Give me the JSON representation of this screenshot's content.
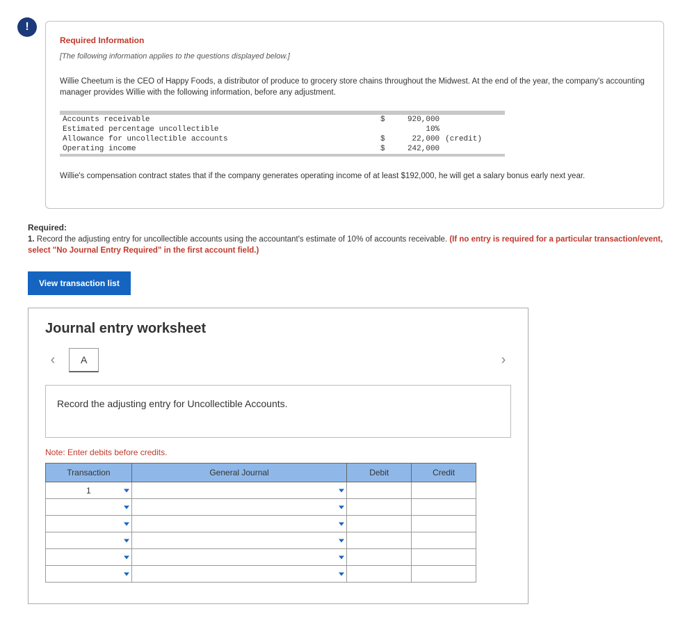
{
  "badge_char": "!",
  "required_info": {
    "title": "Required Information",
    "subtitle": "[The following information applies to the questions displayed below.]",
    "para1": "Willie Cheetum is the CEO of Happy Foods, a distributor of produce to grocery store chains throughout the Midwest. At the end of the year, the company's accounting manager provides Willie with the following information, before any adjustment.",
    "accounts": [
      {
        "label": "Accounts receivable",
        "currency": "$",
        "value": "920,000",
        "note": ""
      },
      {
        "label": "Estimated percentage uncollectible",
        "currency": "",
        "value": "10%",
        "note": ""
      },
      {
        "label": "Allowance for uncollectible accounts",
        "currency": "$",
        "value": "22,000",
        "note": "(credit)"
      },
      {
        "label": "Operating income",
        "currency": "$",
        "value": "242,000",
        "note": ""
      }
    ],
    "para2": "Willie's compensation contract states that if the company generates operating income of at least $192,000, he will get a salary bonus early next year."
  },
  "required": {
    "label": "Required:",
    "item1_prefix": "1. ",
    "item1_text": "Record the adjusting entry for uncollectible accounts using the accountant's estimate of 10% of accounts receivable. ",
    "item1_red": "(If no entry is required for a particular transaction/event, select \"No Journal Entry Required\" in the first account field.)"
  },
  "view_button": "View transaction list",
  "worksheet": {
    "title": "Journal entry worksheet",
    "tab": "A",
    "instruction": "Record the adjusting entry for Uncollectible Accounts.",
    "note": "Note: Enter debits before credits.",
    "columns": {
      "transaction": "Transaction",
      "general_journal": "General Journal",
      "debit": "Debit",
      "credit": "Credit"
    },
    "first_transaction": "1",
    "row_count": 6
  },
  "colors": {
    "badge_bg": "#1a3a7a",
    "accent_red": "#c0392b",
    "button_bg": "#1565c0",
    "table_header_bg": "#8fb8e8"
  }
}
